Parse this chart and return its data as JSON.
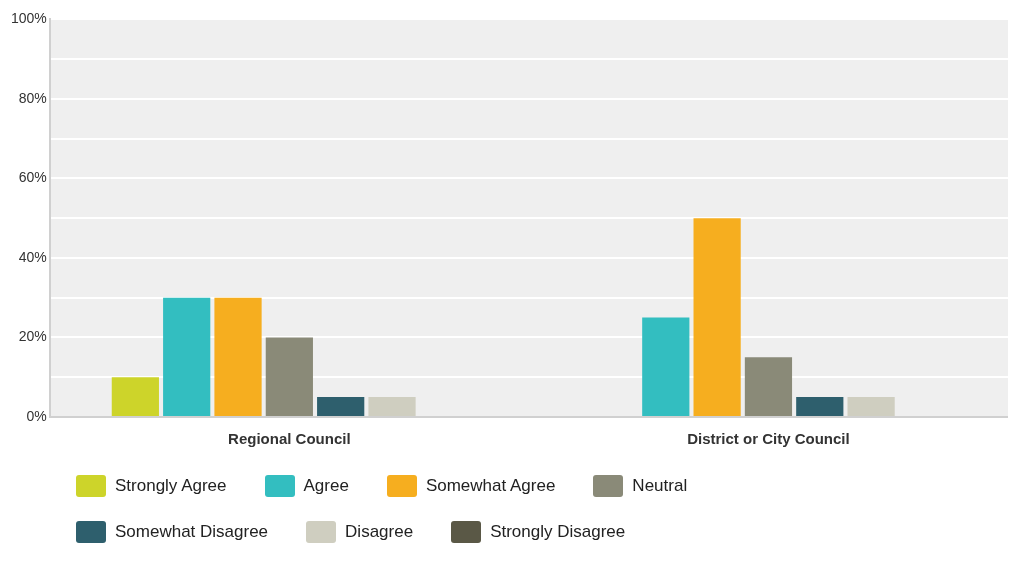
{
  "chart_data": {
    "type": "bar",
    "categories": [
      "Regional Council",
      "District or City Council"
    ],
    "series": [
      {
        "name": "Strongly Agree",
        "color": "#cdd42a",
        "values": [
          10,
          0
        ]
      },
      {
        "name": "Agree",
        "color": "#33bec0",
        "values": [
          30,
          25
        ]
      },
      {
        "name": "Somewhat Agree",
        "color": "#f6ae1f",
        "values": [
          30,
          50
        ]
      },
      {
        "name": "Neutral",
        "color": "#8a8a78",
        "values": [
          20,
          15
        ]
      },
      {
        "name": "Somewhat Disagree",
        "color": "#2e5f6d",
        "values": [
          5,
          5
        ]
      },
      {
        "name": "Disagree",
        "color": "#cfcec0",
        "values": [
          5,
          5
        ]
      },
      {
        "name": "Strongly Disagree",
        "color": "#5a5846",
        "values": [
          0,
          0
        ]
      }
    ],
    "ylim": [
      0,
      100
    ],
    "yticks": [
      {
        "value": 0,
        "label": "0%"
      },
      {
        "value": 10,
        "label": null
      },
      {
        "value": 20,
        "label": "20%"
      },
      {
        "value": 30,
        "label": null
      },
      {
        "value": 40,
        "label": "40%"
      },
      {
        "value": 50,
        "label": null
      },
      {
        "value": 60,
        "label": "60%"
      },
      {
        "value": 70,
        "label": null
      },
      {
        "value": 80,
        "label": "80%"
      },
      {
        "value": 90,
        "label": null
      },
      {
        "value": 100,
        "label": "100%"
      }
    ],
    "grid": "y",
    "legend": "bottom left"
  }
}
